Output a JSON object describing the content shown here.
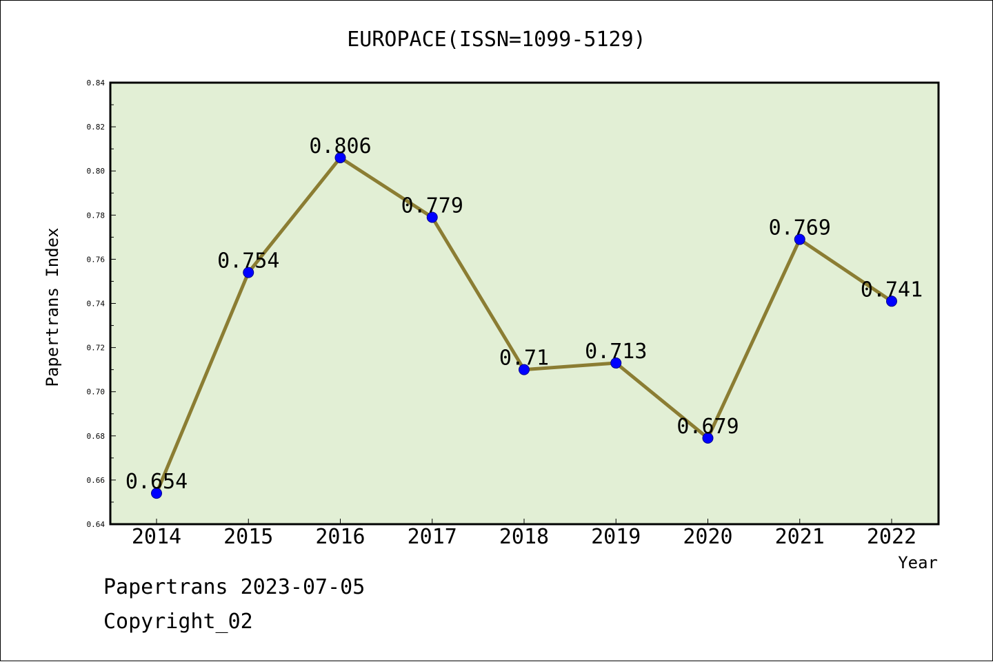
{
  "footer": {
    "line1": "Papertrans 2023-07-05",
    "line2": "Copyright_02"
  },
  "colors": {
    "plot_background": "#e2efd5",
    "line": "#8b7d33",
    "marker": "#0000ff"
  },
  "chart_data": {
    "type": "line",
    "title": "EUROPACE(ISSN=1099-5129)",
    "xlabel": "Year",
    "ylabel": "Papertrans Index",
    "categories": [
      "2014",
      "2015",
      "2016",
      "2017",
      "2018",
      "2019",
      "2020",
      "2021",
      "2022"
    ],
    "series": [
      {
        "values": [
          0.654,
          0.754,
          0.806,
          0.779,
          0.71,
          0.713,
          0.679,
          0.769,
          0.741
        ],
        "labels": [
          "0.654",
          "0.754",
          "0.806",
          "0.779",
          "0.71",
          "0.713",
          "0.679",
          "0.769",
          "0.741"
        ]
      }
    ],
    "ylim": [
      0.64,
      0.84
    ],
    "yticks": [
      "0.64",
      "0.66",
      "0.68",
      "0.70",
      "0.72",
      "0.74",
      "0.76",
      "0.78",
      "0.80",
      "0.82",
      "0.84"
    ],
    "grid": false,
    "legend": "none"
  }
}
